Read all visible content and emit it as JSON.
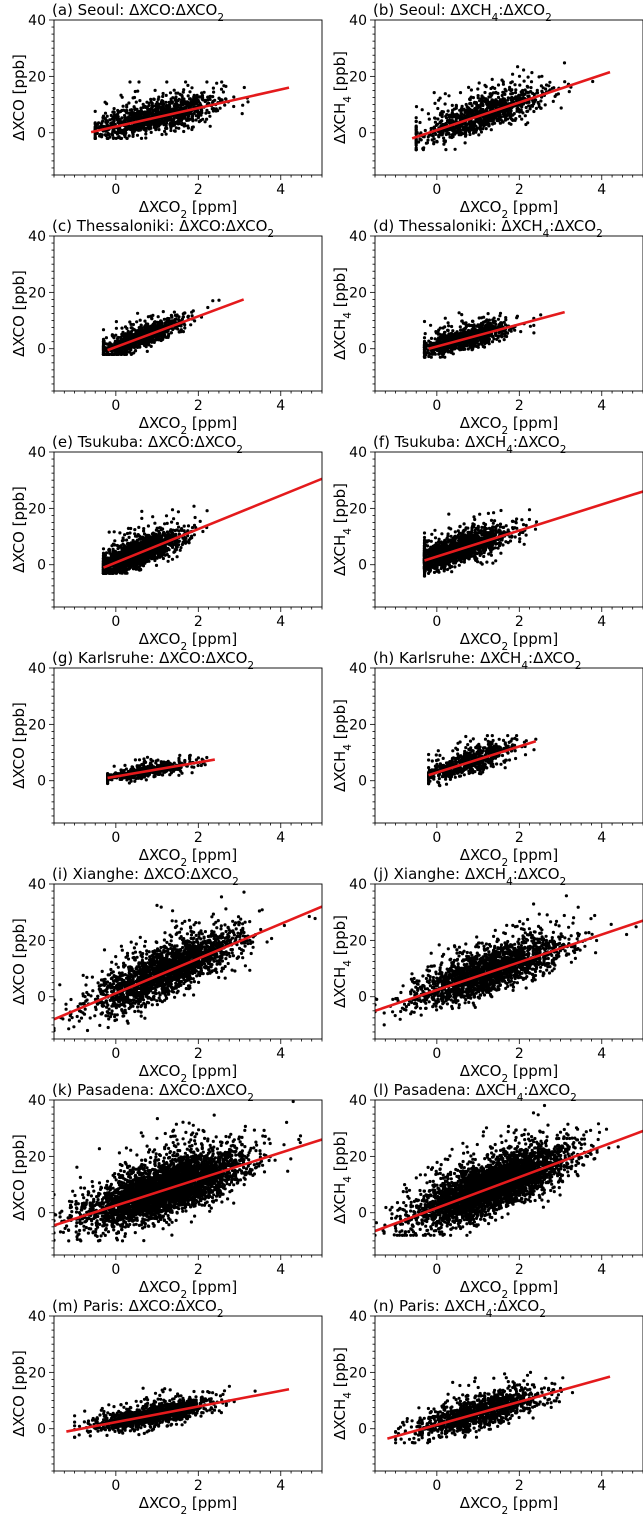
{
  "figure": {
    "xlabel": "ΔXCO₂ [ppm]",
    "xlim": [
      -1.5,
      5
    ],
    "ylim": [
      -15,
      40
    ],
    "xticks": [
      "0",
      "2",
      "4"
    ],
    "yticks": [
      "0",
      "20",
      "40"
    ],
    "point_color": "#000000",
    "fit_color": "#e41a1c"
  },
  "chart_data": [
    {
      "id": "a",
      "type": "scatter",
      "title": "(a) Seoul: ΔXCO:ΔXCO₂",
      "xlabel": "ΔXCO₂ [ppm]",
      "ylabel": "ΔXCO [ppb]",
      "xlim": [
        -1.5,
        5
      ],
      "ylim": [
        -15,
        40
      ],
      "fit_line": {
        "x": [
          -0.6,
          4.2
        ],
        "y": [
          0.2,
          16.0
        ]
      },
      "point_cloud": {
        "n": 1100,
        "x_center": 1.0,
        "x_spread": 0.75,
        "x_range": [
          -0.5,
          4.3
        ],
        "y_center": 5.0,
        "y_spread": 4.5,
        "y_range": [
          -2,
          18
        ]
      }
    },
    {
      "id": "b",
      "type": "scatter",
      "title": "(b) Seoul: ΔXCH₄:ΔXCO₂",
      "xlabel": "ΔXCO₂ [ppm]",
      "ylabel": "ΔXCH₄ [ppb]",
      "xlim": [
        -1.5,
        5
      ],
      "ylim": [
        -15,
        40
      ],
      "fit_line": {
        "x": [
          -0.6,
          4.2
        ],
        "y": [
          -2.0,
          21.5
        ]
      },
      "point_cloud": {
        "n": 1000,
        "x_center": 1.1,
        "x_spread": 0.8,
        "x_range": [
          -0.5,
          4.3
        ],
        "y_center": 6.0,
        "y_spread": 5.0,
        "y_range": [
          -6,
          26
        ]
      }
    },
    {
      "id": "c",
      "type": "scatter",
      "title": "(c) Thessaloniki: ΔXCO:ΔXCO₂",
      "xlabel": "ΔXCO₂ [ppm]",
      "ylabel": "ΔXCO [ppb]",
      "xlim": [
        -1.5,
        5
      ],
      "ylim": [
        -15,
        40
      ],
      "fit_line": {
        "x": [
          -0.2,
          3.1
        ],
        "y": [
          -0.5,
          17.5
        ]
      },
      "point_cloud": {
        "n": 1000,
        "x_center": 0.6,
        "x_spread": 0.5,
        "x_range": [
          -0.3,
          3.1
        ],
        "y_center": 3.5,
        "y_spread": 3.0,
        "y_range": [
          -2,
          18
        ]
      }
    },
    {
      "id": "d",
      "type": "scatter",
      "title": "(d) Thessaloniki: ΔXCH₄:ΔXCO₂",
      "xlabel": "ΔXCO₂ [ppm]",
      "ylabel": "ΔXCH₄ [ppb]",
      "xlim": [
        -1.5,
        5
      ],
      "ylim": [
        -15,
        40
      ],
      "fit_line": {
        "x": [
          -0.2,
          3.1
        ],
        "y": [
          0.0,
          13.0
        ]
      },
      "point_cloud": {
        "n": 1000,
        "x_center": 0.7,
        "x_spread": 0.55,
        "x_range": [
          -0.3,
          3.1
        ],
        "y_center": 3.0,
        "y_spread": 3.0,
        "y_range": [
          -3,
          17
        ]
      }
    },
    {
      "id": "e",
      "type": "scatter",
      "title": "(e) Tsukuba: ΔXCO:ΔXCO₂",
      "xlabel": "ΔXCO₂ [ppm]",
      "ylabel": "ΔXCO [ppb]",
      "xlim": [
        -1.5,
        5
      ],
      "ylim": [
        -15,
        40
      ],
      "fit_line": {
        "x": [
          -0.3,
          5.0
        ],
        "y": [
          -1.0,
          30.5
        ]
      },
      "point_cloud": {
        "n": 1600,
        "x_center": 0.5,
        "x_spread": 0.55,
        "x_range": [
          -0.3,
          4.9
        ],
        "y_center": 3.0,
        "y_spread": 4.0,
        "y_range": [
          -3,
          36
        ]
      }
    },
    {
      "id": "f",
      "type": "scatter",
      "title": "(f) Tsukuba: ΔXCH₄:ΔXCO₂",
      "xlabel": "ΔXCO₂ [ppm]",
      "ylabel": "ΔXCH₄ [ppb]",
      "xlim": [
        -1.5,
        5
      ],
      "ylim": [
        -15,
        40
      ],
      "fit_line": {
        "x": [
          -0.3,
          5.0
        ],
        "y": [
          1.5,
          26.0
        ]
      },
      "point_cloud": {
        "n": 1600,
        "x_center": 0.5,
        "x_spread": 0.6,
        "x_range": [
          -0.3,
          5.0
        ],
        "y_center": 4.0,
        "y_spread": 4.0,
        "y_range": [
          -4,
          33
        ]
      }
    },
    {
      "id": "g",
      "type": "scatter",
      "title": "(g) Karlsruhe: ΔXCO:ΔXCO₂",
      "xlabel": "ΔXCO₂ [ppm]",
      "ylabel": "ΔXCO [ppb]",
      "xlim": [
        -1.5,
        5
      ],
      "ylim": [
        -15,
        40
      ],
      "fit_line": {
        "x": [
          -0.2,
          2.4
        ],
        "y": [
          1.0,
          7.5
        ]
      },
      "point_cloud": {
        "n": 500,
        "x_center": 0.8,
        "x_spread": 0.55,
        "x_range": [
          -0.2,
          2.4
        ],
        "y_center": 3.5,
        "y_spread": 1.8,
        "y_range": [
          -1,
          9
        ]
      }
    },
    {
      "id": "h",
      "type": "scatter",
      "title": "(h) Karlsruhe: ΔXCH₄:ΔXCO₂",
      "xlabel": "ΔXCO₂ [ppm]",
      "ylabel": "ΔXCH₄ [ppb]",
      "xlim": [
        -1.5,
        5
      ],
      "ylim": [
        -15,
        40
      ],
      "fit_line": {
        "x": [
          -0.2,
          2.4
        ],
        "y": [
          2.0,
          14.0
        ]
      },
      "point_cloud": {
        "n": 600,
        "x_center": 0.8,
        "x_spread": 0.55,
        "x_range": [
          -0.2,
          2.4
        ],
        "y_center": 6.0,
        "y_spread": 3.5,
        "y_range": [
          -4,
          16
        ]
      }
    },
    {
      "id": "i",
      "type": "scatter",
      "title": "(i) Xianghe: ΔXCO:ΔXCO₂",
      "xlabel": "ΔXCO₂ [ppm]",
      "ylabel": "ΔXCO [ppb]",
      "xlim": [
        -1.5,
        5
      ],
      "ylim": [
        -15,
        40
      ],
      "fit_line": {
        "x": [
          -1.5,
          5.0
        ],
        "y": [
          -8.0,
          32.0
        ]
      },
      "point_cloud": {
        "n": 2200,
        "x_center": 1.2,
        "x_spread": 0.9,
        "x_range": [
          -1.5,
          5.0
        ],
        "y_center": 7.0,
        "y_spread": 7.0,
        "y_range": [
          -12,
          40
        ]
      }
    },
    {
      "id": "j",
      "type": "scatter",
      "title": "(j) Xianghe: ΔXCH₄:ΔXCO₂",
      "xlabel": "ΔXCO₂ [ppm]",
      "ylabel": "ΔXCH₄ [ppb]",
      "xlim": [
        -1.5,
        5
      ],
      "ylim": [
        -15,
        40
      ],
      "fit_line": {
        "x": [
          -1.5,
          5.0
        ],
        "y": [
          -5.0,
          27.0
        ]
      },
      "point_cloud": {
        "n": 2000,
        "x_center": 1.3,
        "x_spread": 0.9,
        "x_range": [
          -1.5,
          5.0
        ],
        "y_center": 9.0,
        "y_spread": 6.0,
        "y_range": [
          -10,
          38
        ]
      }
    },
    {
      "id": "k",
      "type": "scatter",
      "title": "(k) Pasadena: ΔXCO:ΔXCO₂",
      "xlabel": "ΔXCO₂ [ppm]",
      "ylabel": "ΔXCO [ppb]",
      "xlim": [
        -1.5,
        5
      ],
      "ylim": [
        -15,
        40
      ],
      "fit_line": {
        "x": [
          -1.5,
          5.0
        ],
        "y": [
          -4.5,
          26.0
        ]
      },
      "point_cloud": {
        "n": 4200,
        "x_center": 1.2,
        "x_spread": 0.9,
        "x_range": [
          -1.5,
          5.0
        ],
        "y_center": 9.0,
        "y_spread": 7.0,
        "y_range": [
          -10,
          40
        ]
      }
    },
    {
      "id": "l",
      "type": "scatter",
      "title": "(l) Pasadena: ΔXCH₄:ΔXCO₂",
      "xlabel": "ΔXCO₂ [ppm]",
      "ylabel": "ΔXCH₄ [ppb]",
      "xlim": [
        -1.5,
        5
      ],
      "ylim": [
        -15,
        40
      ],
      "fit_line": {
        "x": [
          -1.5,
          5.0
        ],
        "y": [
          -6.5,
          29.0
        ]
      },
      "point_cloud": {
        "n": 4000,
        "x_center": 1.3,
        "x_spread": 0.9,
        "x_range": [
          -1.5,
          5.0
        ],
        "y_center": 10.0,
        "y_spread": 7.0,
        "y_range": [
          -8,
          40
        ]
      }
    },
    {
      "id": "m",
      "type": "scatter",
      "title": "(m) Paris: ΔXCO:ΔXCO₂",
      "xlabel": "ΔXCO₂ [ppm]",
      "ylabel": "ΔXCO [ppb]",
      "xlim": [
        -1.5,
        5
      ],
      "ylim": [
        -15,
        40
      ],
      "fit_line": {
        "x": [
          -1.2,
          4.2
        ],
        "y": [
          -1.0,
          14.0
        ]
      },
      "point_cloud": {
        "n": 1300,
        "x_center": 0.9,
        "x_spread": 0.7,
        "x_range": [
          -1.0,
          4.3
        ],
        "y_center": 4.0,
        "y_spread": 3.0,
        "y_range": [
          -3,
          17
        ]
      }
    },
    {
      "id": "n",
      "type": "scatter",
      "title": "(n) Paris: ΔXCH₄:ΔXCO₂",
      "xlabel": "ΔXCO₂ [ppm]",
      "ylabel": "ΔXCH₄ [ppb]",
      "xlim": [
        -1.5,
        5
      ],
      "ylim": [
        -15,
        40
      ],
      "fit_line": {
        "x": [
          -1.2,
          4.2
        ],
        "y": [
          -3.5,
          18.5
        ]
      },
      "point_cloud": {
        "n": 1200,
        "x_center": 1.0,
        "x_spread": 0.75,
        "x_range": [
          -1.0,
          4.3
        ],
        "y_center": 6.0,
        "y_spread": 4.5,
        "y_range": [
          -5,
          20
        ]
      }
    }
  ]
}
